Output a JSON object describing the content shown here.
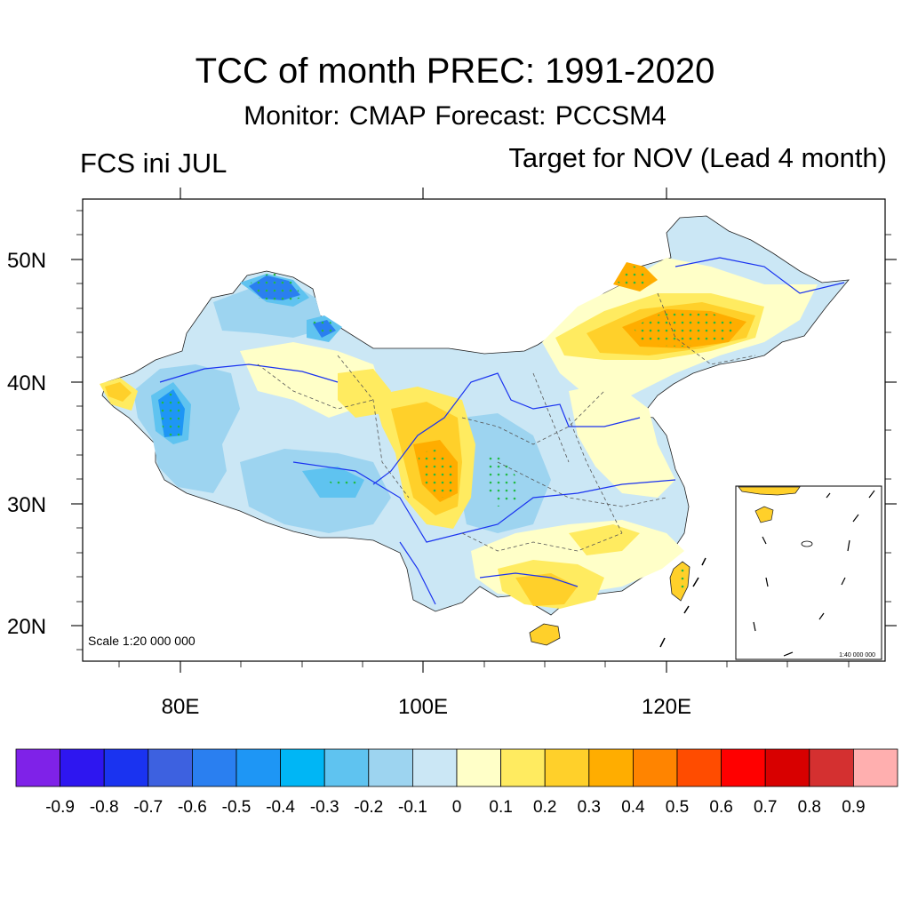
{
  "header": {
    "title": "TCC of month PREC: 1991-2020",
    "subtitle": "Monitor: CMAP   Forecast: PCCSM4",
    "left_label": "FCS ini JUL",
    "right_label": "Target for NOV (Lead 4 month)"
  },
  "map": {
    "scale_label": "Scale 1:20 000 000",
    "inset_scale_label": "1:40 000 000",
    "lat_labels": [
      "50N",
      "40N",
      "30N",
      "20N"
    ],
    "lon_labels": [
      "80E",
      "100E",
      "120E"
    ],
    "lon_range": [
      72,
      138
    ],
    "lat_range": [
      17,
      55
    ],
    "stipple_color": "#22bb44"
  },
  "colorbar": {
    "colors": [
      "#7f22e8",
      "#2e16f0",
      "#1a33f0",
      "#3d61e0",
      "#2a7ff0",
      "#1e96f5",
      "#00b6f5",
      "#5fc3f0",
      "#9dd4f0",
      "#cbe7f5",
      "#ffffc8",
      "#ffeb60",
      "#ffd02a",
      "#ffad00",
      "#ff8400",
      "#ff4c00",
      "#ff0000",
      "#d80000",
      "#d43030",
      "#ffafaf"
    ],
    "labels": [
      "-0.9",
      "-0.8",
      "-0.7",
      "-0.6",
      "-0.5",
      "-0.4",
      "-0.3",
      "-0.2",
      "-0.1",
      "0",
      "0.1",
      "0.2",
      "0.3",
      "0.4",
      "0.5",
      "0.6",
      "0.7",
      "0.8",
      "0.9"
    ]
  }
}
